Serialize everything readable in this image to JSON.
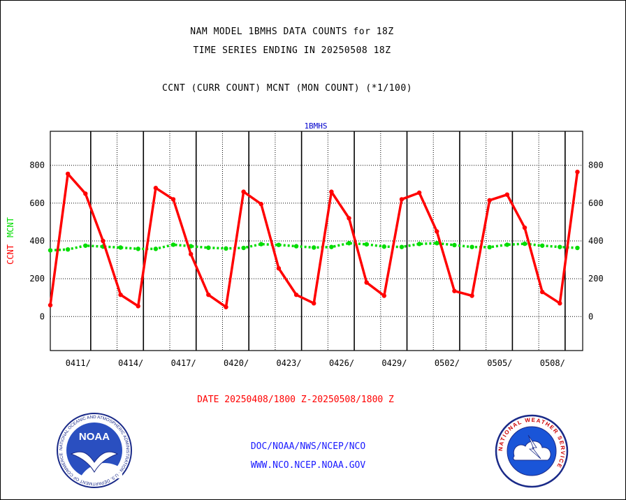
{
  "header": {
    "line1": "NAM MODEL 1BMHS DATA COUNTS for 18Z",
    "line2": "TIME SERIES ENDING IN 20250508 18Z",
    "line3": "CCNT (CURR COUNT) MCNT (MON COUNT) (*1/100)"
  },
  "footer": {
    "date_range": "DATE 20250408/1800 Z-20250508/1800 Z",
    "link1": "DOC/NOAA/NWS/NCEP/NCO",
    "link2": "WWW.NCO.NCEP.NOAA.GOV"
  },
  "logos": {
    "noaa": "NOAA",
    "nws": "NATIONAL WEATHER SERVICE",
    "noaa_ring": "NATIONAL OCEANIC AND ATMOSPHERIC ADMINISTRATION · U.S. DEPARTMENT OF COMMERCE"
  },
  "colors": {
    "ccnt": "#ff0000",
    "mcnt": "#00dd00",
    "axis_title": "#0000cc",
    "link": "#1a1aff"
  },
  "chart_data": {
    "type": "line",
    "title": "1BMHS",
    "ylabel_parts": [
      {
        "text": "CCNT",
        "color": "#ff0000"
      },
      {
        "text": "MCNT",
        "color": "#00dd00"
      }
    ],
    "ylim": [
      -180,
      980
    ],
    "yticks": [
      0,
      200,
      400,
      600,
      800
    ],
    "ytick_labels": [
      "0",
      "200",
      "400",
      "600",
      "800"
    ],
    "xlim": [
      0,
      30.3
    ],
    "x": [
      0,
      1,
      2,
      3,
      4,
      5,
      6,
      7,
      8,
      9,
      10,
      11,
      12,
      13,
      14,
      15,
      16,
      17,
      18,
      19,
      20,
      21,
      22,
      23,
      24,
      25,
      26,
      27,
      28,
      29,
      30
    ],
    "xticks": [
      2.3,
      5.3,
      8.3,
      11.3,
      14.3,
      17.3,
      20.3,
      23.3,
      26.3,
      29.3
    ],
    "xtick_labels": [
      "0411/",
      "0414/",
      "0417/",
      "0420/",
      "0423/",
      "0426/",
      "0429/",
      "0502/",
      "0505/",
      "0508/"
    ],
    "grid": true,
    "series": [
      {
        "name": "CCNT",
        "color": "#ff0000",
        "values": [
          60,
          755,
          650,
          400,
          115,
          55,
          680,
          620,
          330,
          115,
          50,
          660,
          595,
          255,
          115,
          70,
          660,
          520,
          180,
          110,
          620,
          655,
          450,
          135,
          110,
          615,
          645,
          470,
          130,
          70,
          765
        ]
      },
      {
        "name": "MCNT",
        "color": "#00dd00",
        "values": [
          350,
          355,
          375,
          370,
          365,
          358,
          358,
          380,
          372,
          364,
          360,
          363,
          383,
          379,
          372,
          365,
          368,
          388,
          382,
          370,
          368,
          384,
          388,
          378,
          368,
          367,
          380,
          385,
          375,
          368,
          363
        ]
      }
    ]
  }
}
